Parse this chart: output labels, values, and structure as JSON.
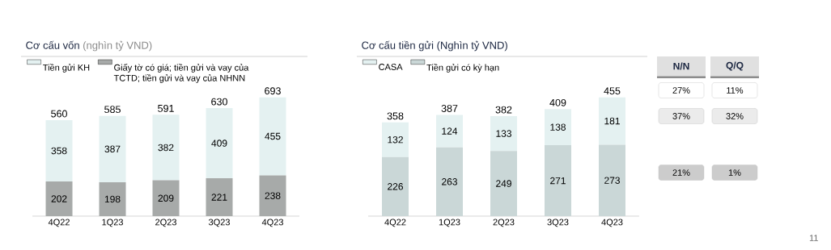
{
  "chart_data": [
    {
      "type": "bar",
      "title": "Cơ cấu vốn",
      "subtitle": "(nghìn tỷ VND)",
      "categories": [
        "4Q22",
        "1Q23",
        "2Q23",
        "3Q23",
        "4Q23"
      ],
      "stacked": true,
      "data_labels": true,
      "legend": "top left",
      "series": [
        {
          "name": "Giấy tờ có giá; tiền gửi và vay của TCTD; tiền gửi và vay của NHNN",
          "color": "#a7aaa9",
          "values": [
            202,
            198,
            209,
            221,
            238
          ]
        },
        {
          "name": "Tiền gửi KH",
          "color": "#e4f1f1",
          "values": [
            358,
            387,
            382,
            409,
            455
          ]
        }
      ],
      "totals": [
        "560",
        "585",
        "591",
        "630",
        "693"
      ]
    },
    {
      "type": "bar",
      "title": "Cơ cấu tiền gửi (Nghìn tỷ VND)",
      "categories": [
        "4Q22",
        "1Q23",
        "2Q23",
        "3Q23",
        "4Q23"
      ],
      "stacked": true,
      "data_labels": true,
      "legend": "top left",
      "series": [
        {
          "name": "Tiền gửi có kỳ hạn",
          "color": "#cad7d7",
          "values": [
            226,
            263,
            249,
            271,
            273
          ]
        },
        {
          "name": "CASA",
          "color": "#e4f1f1",
          "values": [
            132,
            124,
            133,
            138,
            181
          ]
        }
      ],
      "totals": [
        "358",
        "387",
        "382",
        "409",
        "455"
      ]
    },
    {
      "type": "other",
      "annotations": [
        "N/N",
        "Q/Q",
        "27%",
        "11%",
        "37%",
        "32%",
        "21%",
        "1%",
        "11"
      ]
    }
  ]
}
